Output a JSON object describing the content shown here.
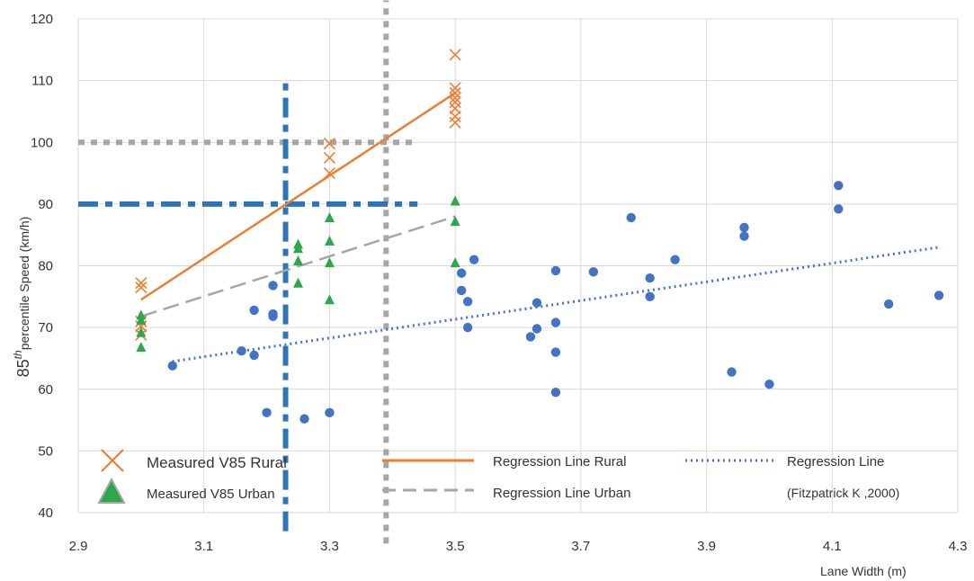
{
  "chart_data": {
    "type": "scatter",
    "xlabel": "Lane Width (m)",
    "ylabel_prefix": "85",
    "ylabel_sup": "th",
    "ylabel_suffix": "percentile Speed  (km/h)",
    "xlim": [
      2.9,
      4.3
    ],
    "ylim": [
      40,
      120
    ],
    "x_ticks": [
      "2.9",
      "3.1",
      "3.3",
      "3.5",
      "3.7",
      "3.9",
      "4.1",
      "4.3"
    ],
    "y_ticks": [
      "40",
      "50",
      "60",
      "70",
      "80",
      "90",
      "100",
      "110",
      "120"
    ],
    "grid": "vertical and horizontal",
    "legend_placement": "bottom",
    "series": [
      {
        "name": "Measured V85 Rural",
        "marker": "x",
        "color": "#ED7D31",
        "points": [
          [
            3.0,
            77.2
          ],
          [
            3.0,
            76.5
          ],
          [
            3.0,
            71.0
          ],
          [
            3.0,
            70.2
          ],
          [
            3.0,
            68.8
          ],
          [
            3.3,
            99.8
          ],
          [
            3.3,
            97.5
          ],
          [
            3.3,
            95.0
          ],
          [
            3.5,
            114.2
          ],
          [
            3.5,
            108.8
          ],
          [
            3.5,
            108.0
          ],
          [
            3.5,
            107.2
          ],
          [
            3.5,
            106.5
          ],
          [
            3.5,
            105.5
          ],
          [
            3.5,
            104.2
          ],
          [
            3.5,
            103.2
          ]
        ]
      },
      {
        "name": "Measured V85 Urban",
        "marker": "triangle",
        "color": "#2BA84A",
        "points": [
          [
            3.0,
            72.0
          ],
          [
            3.0,
            71.2
          ],
          [
            3.0,
            69.2
          ],
          [
            3.0,
            66.8
          ],
          [
            3.25,
            83.5
          ],
          [
            3.25,
            82.8
          ],
          [
            3.25,
            80.8
          ],
          [
            3.25,
            77.2
          ],
          [
            3.3,
            87.8
          ],
          [
            3.3,
            84.0
          ],
          [
            3.3,
            80.5
          ],
          [
            3.3,
            74.5
          ],
          [
            3.5,
            90.5
          ],
          [
            3.5,
            87.2
          ],
          [
            3.5,
            80.5
          ]
        ]
      },
      {
        "name": "Fitzpatrick K ,2000",
        "marker": "circle",
        "color": "#4472C4",
        "points": [
          [
            3.05,
            63.8
          ],
          [
            3.16,
            66.2
          ],
          [
            3.18,
            65.5
          ],
          [
            3.18,
            72.8
          ],
          [
            3.2,
            56.2
          ],
          [
            3.21,
            72.2
          ],
          [
            3.21,
            71.8
          ],
          [
            3.21,
            76.8
          ],
          [
            3.26,
            55.2
          ],
          [
            3.3,
            56.2
          ],
          [
            3.51,
            78.8
          ],
          [
            3.51,
            76.0
          ],
          [
            3.52,
            74.2
          ],
          [
            3.52,
            70.0
          ],
          [
            3.53,
            81.0
          ],
          [
            3.62,
            68.5
          ],
          [
            3.63,
            74.0
          ],
          [
            3.63,
            69.8
          ],
          [
            3.66,
            79.2
          ],
          [
            3.66,
            70.8
          ],
          [
            3.66,
            66.0
          ],
          [
            3.66,
            59.5
          ],
          [
            3.72,
            79.0
          ],
          [
            3.78,
            87.8
          ],
          [
            3.81,
            78.0
          ],
          [
            3.81,
            75.0
          ],
          [
            3.85,
            81.0
          ],
          [
            3.94,
            62.8
          ],
          [
            3.96,
            86.2
          ],
          [
            3.96,
            84.8
          ],
          [
            4.0,
            60.8
          ],
          [
            4.11,
            93.0
          ],
          [
            4.11,
            89.2
          ],
          [
            4.19,
            73.8
          ],
          [
            4.27,
            75.2
          ]
        ]
      }
    ],
    "regression_lines": [
      {
        "name": "Regression Line Rural",
        "style": "solid",
        "color": "#ED7D31",
        "points": [
          [
            3.0,
            74.5
          ],
          [
            3.5,
            108.0
          ]
        ]
      },
      {
        "name": "Regression Line Urban",
        "style": "dashed",
        "color": "#A6A6A6",
        "points": [
          [
            3.0,
            71.8
          ],
          [
            3.5,
            88.0
          ]
        ]
      },
      {
        "name": "Regression Line",
        "style": "dotted",
        "color": "#4472C4",
        "points": [
          [
            3.05,
            64.5
          ],
          [
            4.27,
            83.0
          ]
        ]
      }
    ],
    "reference_lines": [
      {
        "orientation": "horizontal",
        "value": 100,
        "color": "#A6A6A6",
        "style": "dotted",
        "span": [
          2.9,
          3.44
        ]
      },
      {
        "orientation": "vertical",
        "value": 3.39,
        "color": "#A6A6A6",
        "style": "dotted",
        "span": [
          35,
          123
        ]
      },
      {
        "orientation": "horizontal",
        "value": 90,
        "color": "#2E75B6",
        "style": "dash-dot",
        "span": [
          2.9,
          3.44
        ]
      },
      {
        "orientation": "vertical",
        "value": 3.23,
        "color": "#2E75B6",
        "style": "dash-dot",
        "span": [
          37,
          110
        ]
      }
    ],
    "legend": {
      "rural_points": "Measured V85 Rural",
      "urban_points": "Measured V85 Urban",
      "rural_line": "Regression Line Rural",
      "urban_line": "Regression Line Urban",
      "fitz_line": "Regression Line",
      "fitz_source": "(Fitzpatrick K ,2000)"
    }
  }
}
